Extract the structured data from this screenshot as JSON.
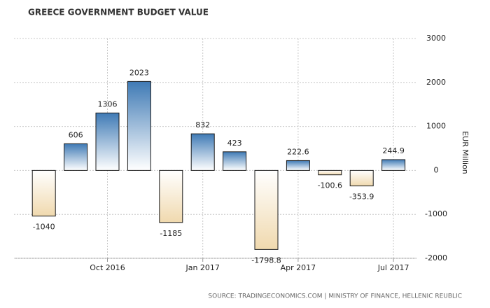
{
  "chart_data": {
    "type": "bar",
    "title": "GREECE GOVERNMENT BUDGET VALUE",
    "y_label": "EUR Million",
    "source": "SOURCE: TRADINGECONOMICS.COM | MINISTRY OF FINANCE, HELLENIC REUBLIC",
    "categories": [
      null,
      null,
      "Oct 2016",
      null,
      null,
      "Jan 2017",
      null,
      null,
      "Apr 2017",
      null,
      null,
      "Jul 2017"
    ],
    "values": [
      -1040,
      606,
      1306,
      2023,
      -1185,
      832,
      423,
      -1798.8,
      222.6,
      -100.6,
      -353.9,
      244.9
    ],
    "color": "#3f7ab5",
    "negative_color": "#f0d9ae",
    "ylim": [
      -2000,
      3000
    ],
    "yticks": [
      -2000,
      -1000,
      0,
      1000,
      2000,
      3000
    ],
    "grid": true
  }
}
